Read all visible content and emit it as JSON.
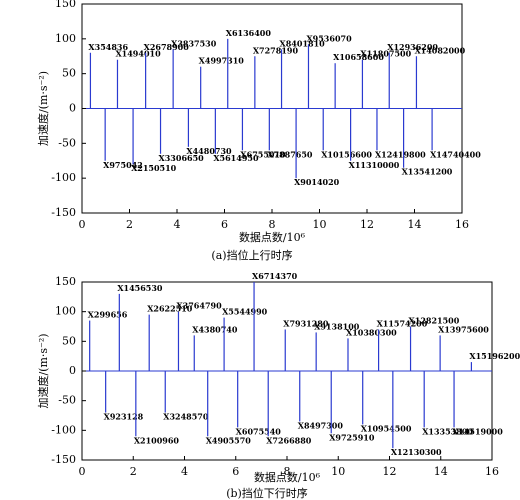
{
  "chart_data": [
    {
      "type": "spike",
      "caption": "(a)挡位上行时序",
      "xlabel": "数据点数/10⁶",
      "ylabel": "加速度/(m·s⁻²)",
      "color": "#2a3ad0",
      "xlim": [
        0,
        16
      ],
      "xticks": [
        0,
        2,
        4,
        6,
        8,
        10,
        12,
        14,
        16
      ],
      "ylim": [
        -150,
        150
      ],
      "yticks": [
        -150,
        -100,
        -50,
        0,
        50,
        100,
        150
      ],
      "x": [
        0.354836,
        0.975042,
        1.49401,
        2.15051,
        2.6789,
        3.30665,
        3.83753,
        4.48073,
        4.99731,
        5.61495,
        6.1364,
        6.75501,
        7.27819,
        7.88765,
        8.40181,
        9.01402,
        9.53607,
        10.1566,
        10.6586,
        11.31,
        11.8075,
        12.4198,
        12.9362,
        13.5412,
        14.082,
        14.7404
      ],
      "values": [
        80,
        -75,
        70,
        -80,
        80,
        -65,
        85,
        -55,
        60,
        -65,
        100,
        -60,
        75,
        -60,
        85,
        -100,
        92,
        -60,
        65,
        -75,
        70,
        -60,
        80,
        -85,
        75,
        -60
      ],
      "point_labels": [
        "X354836",
        "X975042",
        "X1494010",
        "X2150510",
        "X2678900",
        "X3306650",
        "X3837530",
        "X4480730",
        "X4997310",
        "X5614950",
        "X6136400",
        "X6755010",
        "X7278190",
        "X7887650",
        "X8401810",
        "X9014020",
        "X9536070",
        "X10156600",
        "X10658600",
        "X11310000",
        "X11807500",
        "X12419800",
        "X12936200",
        "X13541200",
        "X14082000",
        "X14740400"
      ]
    },
    {
      "type": "spike",
      "caption": "(b)挡位下行时序",
      "xlabel": "数据点数/10⁶",
      "ylabel": "加速度/(m·s⁻²)",
      "color": "#2a3ad0",
      "xlim": [
        0,
        16
      ],
      "xticks": [
        0,
        2,
        4,
        6,
        8,
        10,
        12,
        14,
        16
      ],
      "ylim": [
        -150,
        150
      ],
      "yticks": [
        -150,
        -100,
        -50,
        0,
        50,
        100,
        150
      ],
      "x": [
        0.299656,
        0.923128,
        1.45653,
        2.10096,
        2.62251,
        3.24857,
        3.76479,
        4.38074,
        4.90557,
        5.54499,
        6.07554,
        6.71437,
        7.26688,
        7.93128,
        8.4973,
        9.1381,
        9.72591,
        10.3803,
        10.9545,
        11.5742,
        12.1303,
        12.8215,
        13.3538,
        13.9756,
        14.519,
        15.1962
      ],
      "values": [
        85,
        -70,
        130,
        -110,
        95,
        -70,
        100,
        60,
        -110,
        90,
        -95,
        150,
        -110,
        70,
        -85,
        65,
        -105,
        55,
        -90,
        70,
        -130,
        75,
        -95,
        60,
        -95,
        15
      ],
      "point_labels": [
        "X299656",
        "X923128",
        "X1456530",
        "X2100960",
        "X2622510",
        "X3248570",
        "X3764790",
        "X4380740",
        "X4905570",
        "X5544990",
        "X6075540",
        "X6714370",
        "X7266880",
        "X7931280",
        "X8497300",
        "X9138100",
        "X9725910",
        "X10380300",
        "X10954500",
        "X11574200",
        "X12130300",
        "X12821500",
        "X13353800",
        "X13975600",
        "X14519000",
        "X15196200"
      ]
    }
  ]
}
